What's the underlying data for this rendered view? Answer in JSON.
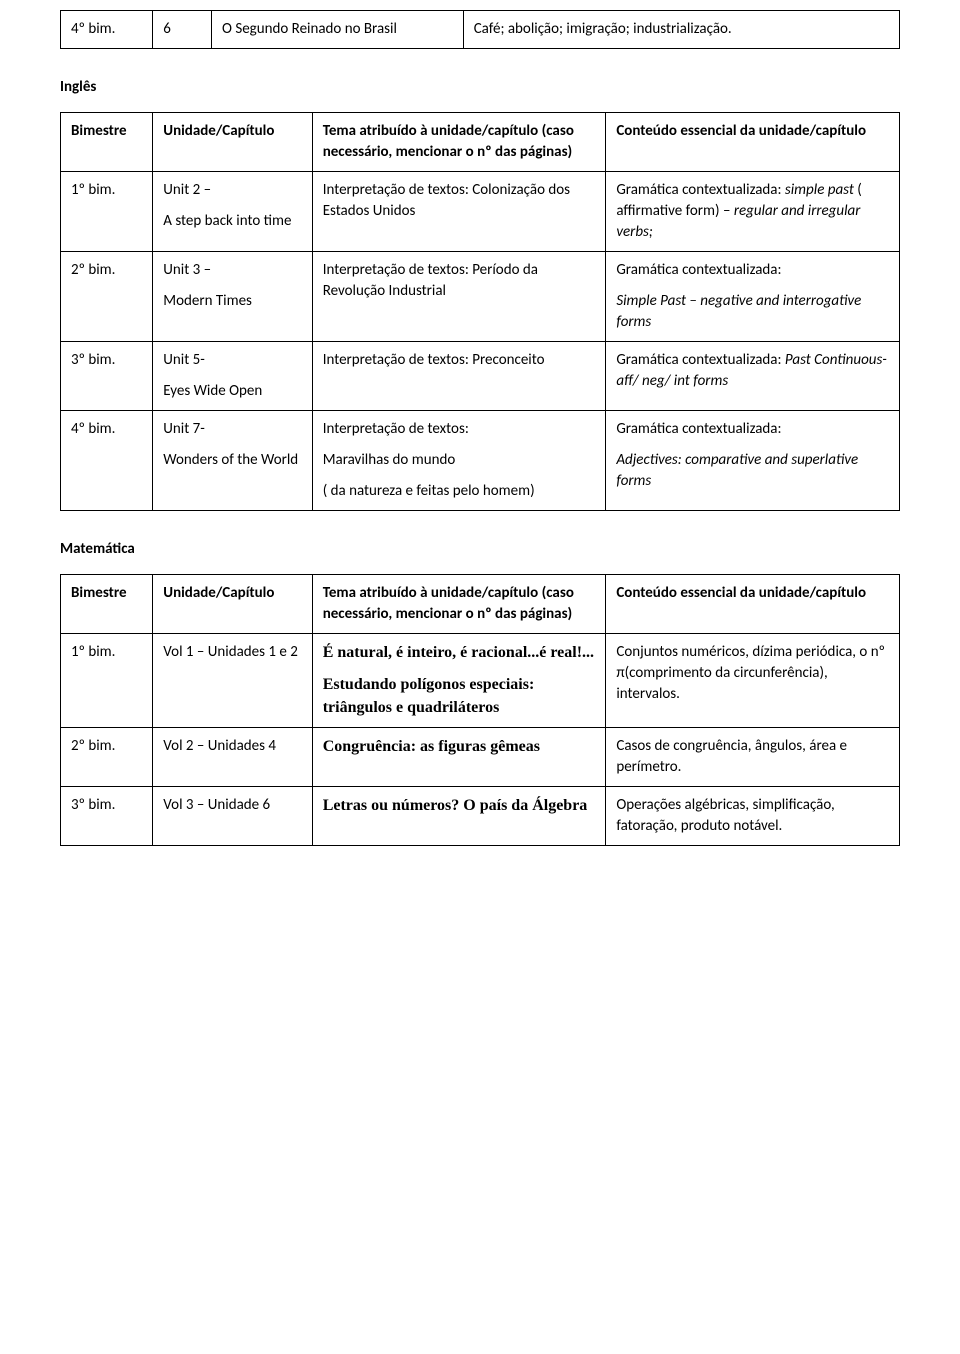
{
  "section_labels": {
    "ingles": "Inglês",
    "matematica": "Matemática"
  },
  "headers": {
    "bimestre": "Bimestre",
    "unidade": "Unidade/Capítulo",
    "tema": "Tema atribuído à unidade/capítulo (caso necessário, mencionar o nº das páginas)",
    "conteudo": "Conteúdo essencial da unidade/capítulo"
  },
  "top_table": {
    "bimestre": "4º bim.",
    "num": "6",
    "unidade": "O Segundo Reinado no Brasil",
    "conteudo": "Café; abolição; imigração; industrialização."
  },
  "ingles": {
    "r1": {
      "bimestre": "1º bim.",
      "unidade_l1": "Unit 2 –",
      "unidade_l2": "A step back into time",
      "tema": "Interpretação de textos: Colonização dos Estados Unidos",
      "conteudo_pre": "Gramática contextualizada: ",
      "conteudo_it": "simple past ",
      "conteudo_mid": "( affirmative form) – ",
      "conteudo_it2": "regular and irregular verbs;"
    },
    "r2": {
      "bimestre": "2º bim.",
      "unidade_l1": "Unit 3 –",
      "unidade_l2": "Modern Times",
      "tema": "Interpretação de textos: Período da Revolução Industrial",
      "conteudo_l1": "Gramática contextualizada:",
      "conteudo_l2": "Simple Past – negative and interrogative forms"
    },
    "r3": {
      "bimestre": "3º bim.",
      "unidade_l1": "Unit 5-",
      "unidade_l2": "Eyes Wide Open",
      "tema": "Interpretação de textos: Preconceito",
      "conteudo_pre": "Gramática contextualizada: ",
      "conteudo_it": "Past Continuous- aff/ neg/ int forms"
    },
    "r4": {
      "bimestre": "4º bim.",
      "unidade_l1": "Unit 7-",
      "unidade_l2": "Wonders of the World",
      "tema_l1": "Interpretação de textos:",
      "tema_l2": "Maravilhas do mundo",
      "tema_l3": "( da natureza e feitas pelo homem)",
      "conteudo_l1": "Gramática contextualizada:",
      "conteudo_l2": "Adjectives: comparative and superlative forms"
    }
  },
  "matematica": {
    "r1": {
      "bimestre": "1º bim.",
      "unidade": "Vol 1 – Unidades 1 e 2",
      "tema_l1": "É natural, é inteiro, é racional...é real!...",
      "tema_l2": "Estudando polígonos especiais: triângulos e quadriláteros",
      "conteudo": "Conjuntos numéricos, dízima periódica, o nº π(comprimento da circunferência), intervalos."
    },
    "r2": {
      "bimestre": "2º bim.",
      "unidade": "Vol 2 – Unidades 4",
      "tema": "Congruência: as figuras gêmeas",
      "conteudo": "Casos de congruência, ângulos, área e perímetro."
    },
    "r3": {
      "bimestre": "3º bim.",
      "unidade": "Vol 3 – Unidade 6",
      "tema": "Letras ou números? O país da Álgebra",
      "conteudo": "Operações algébricas, simplificação, fatoração, produto notável."
    }
  }
}
